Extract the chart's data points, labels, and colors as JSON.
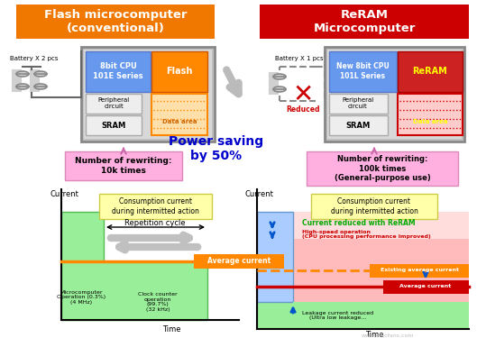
{
  "title_flash": "Flash microcomputer\n(conventional)",
  "title_reram": "ReRAM\nMicrocomputer",
  "title_flash_bg": "#f07800",
  "title_reram_bg": "#cc0000",
  "power_saving_text": "Power saving\nby 50%",
  "power_saving_color": "#0000cc",
  "note_flash_text": "Number of rewriting:\n10k times",
  "note_reram_text": "Number of rewriting:\n100k times\n(General-purpose use)",
  "note_bg": "#ffb0e0",
  "cpu_flash_label": "8bit CPU\n101E Series",
  "cpu_reram_label": "New 8bit CPU\n101L Series",
  "cpu_bg": "#6699ee",
  "flash_label": "Flash",
  "flash_bg": "#ff8800",
  "reram_label": "ReRAM",
  "reram_bg": "#cc2222",
  "peripheral_label": "Peripheral\ncircuit",
  "sram_label": "SRAM",
  "data_area_label": "Data area",
  "sram_bg": "#e8e8e8",
  "peripheral_bg": "#e8e8e8",
  "chip_bg": "#d4d4d4",
  "chip_ec": "#888888",
  "battery_flash": "Battery X 2 pcs",
  "battery_reram": "Battery X 1 pcs",
  "reduced_text": "Reduced",
  "avg_current_color": "#ff8800",
  "avg_current_text": "Average current",
  "existing_avg_color": "#ff8800",
  "existing_avg_text": "Existing average current",
  "new_avg_color": "#cc0000",
  "new_avg_text": "Average current",
  "green_bg": "#99ee99",
  "consumption_text": "Consumption current\nduring intermitted action",
  "repetition_text": "Repetition cycle",
  "current_label": "Current",
  "time_label": "Time",
  "micro_op_text": "Microcomputer\nOperation (0.3%)\n(4 MHz)",
  "clock_op_text": "Clock counter\noperation\n(99.7%)\n(32 kHz)",
  "current_reduced_text": "Current reduced with ReRAM",
  "high_speed_text": "High-speed operation\n(CPU processing performance improved)",
  "leakage_text": "Leakage current reduced\n(Ultra low leakage..."
}
